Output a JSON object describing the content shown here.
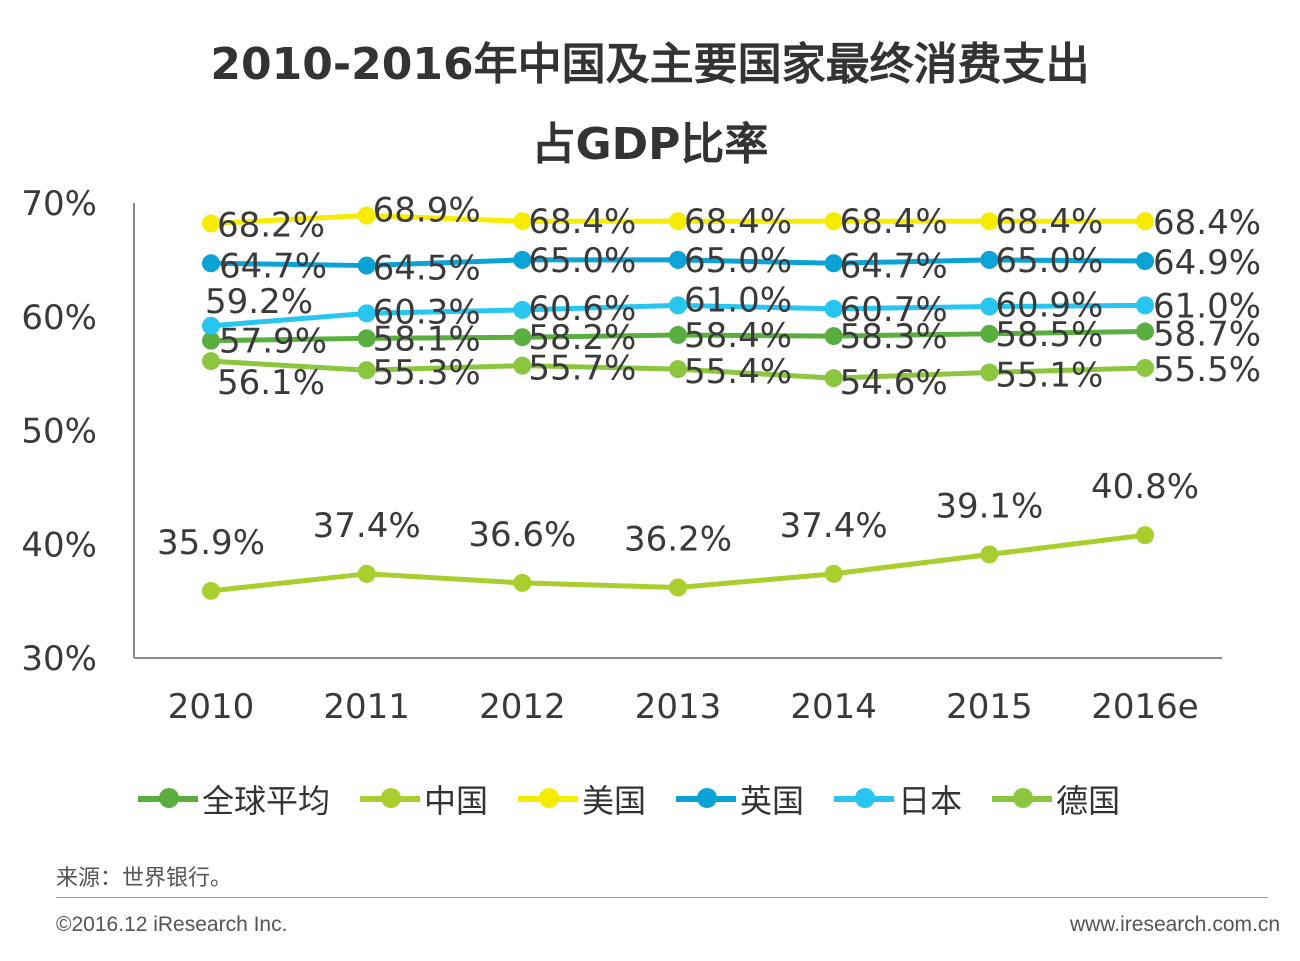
{
  "chart_data": {
    "type": "line",
    "title": "2010-2016年中国及主要国家最终消费支出",
    "subtitle": "占GDP比率",
    "categories": [
      "2010",
      "2011",
      "2012",
      "2013",
      "2014",
      "2015",
      "2016e"
    ],
    "ylim": [
      30,
      70
    ],
    "yticks": [
      "70%",
      "60%",
      "50%",
      "40%",
      "30%"
    ],
    "ytick_values": [
      70,
      60,
      50,
      40,
      30
    ],
    "series": [
      {
        "name": "全球平均",
        "color": "#5aae3f",
        "values": [
          57.9,
          58.1,
          58.2,
          58.4,
          58.3,
          58.5,
          58.7
        ],
        "labels": [
          "57.9%",
          "58.1%",
          "58.2%",
          "58.4%",
          "58.3%",
          "58.5%",
          "58.7%"
        ]
      },
      {
        "name": "中国",
        "color": "#a8cf2e",
        "values": [
          35.9,
          37.4,
          36.6,
          36.2,
          37.4,
          39.1,
          40.8
        ],
        "labels": [
          "35.9%",
          "37.4%",
          "36.6%",
          "36.2%",
          "37.4%",
          "39.1%",
          "40.8%"
        ]
      },
      {
        "name": "美国",
        "color": "#f5ec00",
        "values": [
          68.2,
          68.9,
          68.4,
          68.4,
          68.4,
          68.4,
          68.4
        ],
        "labels": [
          "68.2%",
          "68.9%",
          "68.4%",
          "68.4%",
          "68.4%",
          "68.4%",
          "68.4%"
        ]
      },
      {
        "name": "英国",
        "color": "#0ba2d6",
        "values": [
          64.7,
          64.5,
          65.0,
          65.0,
          64.7,
          65.0,
          64.9
        ],
        "labels": [
          "64.7%",
          "64.5%",
          "65.0%",
          "65.0%",
          "64.7%",
          "65.0%",
          "64.9%"
        ]
      },
      {
        "name": "日本",
        "color": "#27c5ef",
        "values": [
          59.2,
          60.3,
          60.6,
          61.0,
          60.7,
          60.9,
          61.0
        ],
        "labels": [
          "59.2%",
          "60.3%",
          "60.6%",
          "61.0%",
          "60.7%",
          "60.9%",
          "61.0%"
        ]
      },
      {
        "name": "德国",
        "color": "#8cc63f",
        "values": [
          56.1,
          55.3,
          55.7,
          55.4,
          54.6,
          55.1,
          55.5
        ],
        "labels": [
          "56.1%",
          "55.3%",
          "55.7%",
          "55.4%",
          "54.6%",
          "55.1%",
          "55.5%"
        ]
      }
    ]
  },
  "source": "来源：世界银行。",
  "footer": {
    "copyright": "©2016.12 iResearch  Inc.",
    "website": "www.iresearch.com.cn"
  }
}
